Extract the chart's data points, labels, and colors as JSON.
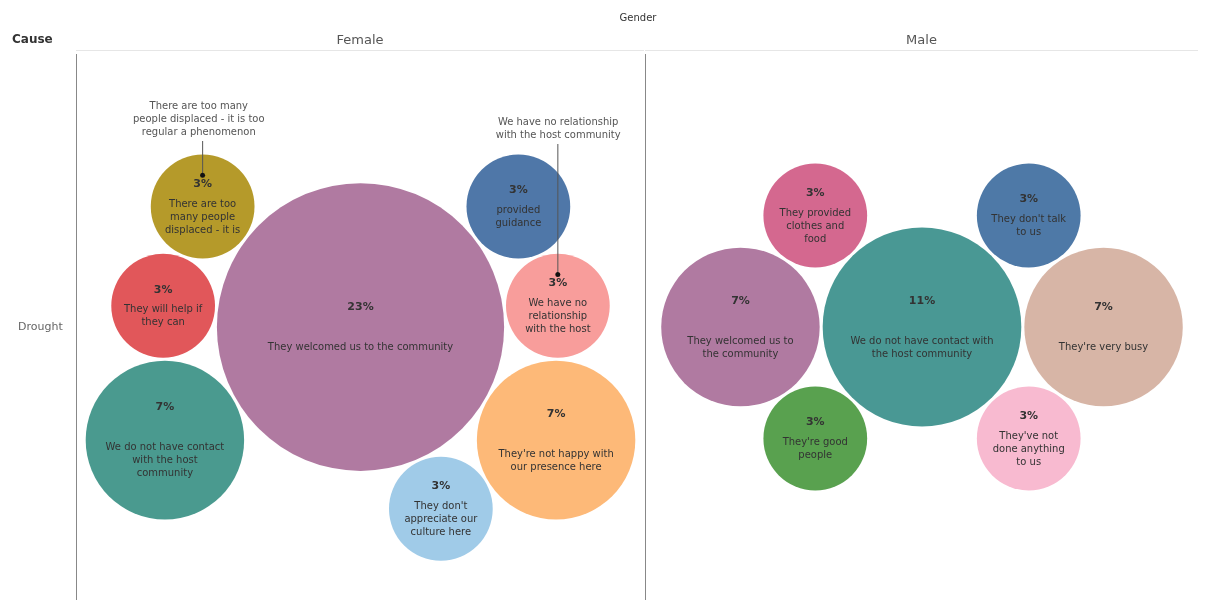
{
  "chart_data": [
    {
      "type": "other",
      "title": "Female",
      "categories": [
        "We have no relationship with the host",
        "They're not happy with our presence here",
        "They will help if they can",
        "We do not have contact with the host community",
        "provided guidance",
        "There are too many people displaced - it is",
        "They don't appreciate our culture here",
        "They welcomed us to the community"
      ],
      "values": [
        3,
        7,
        3,
        7,
        3,
        3,
        3,
        23
      ],
      "value_labels": [
        "3%",
        "7%",
        "3%",
        "7%",
        "3%",
        "3%",
        "3%",
        "23%"
      ],
      "colors": [
        "#f89d9b",
        "#fdb978",
        "#e1575a",
        "#4a9a8f",
        "#4f77a8",
        "#b59a2a",
        "#a0cbe8",
        "#b07aa1"
      ],
      "annotations": [
        "Cause",
        "Gender",
        "Drought",
        {
          "text": "We have no relationship with the host community",
          "x": "We have no relationship with the host"
        },
        {
          "text": "There are too many people displaced - it is too regular a phenomenon",
          "x": "There are too many people displaced - it is"
        }
      ]
    },
    {
      "type": "other",
      "title": "Male",
      "categories": [
        "They're very busy",
        "We do not have contact with the host community",
        "They've not done anything to us",
        "They don't talk to us",
        "They provided clothes and food",
        "They're good people",
        "They welcomed us to the community"
      ],
      "values": [
        7,
        11,
        3,
        3,
        3,
        3,
        7
      ],
      "value_labels": [
        "7%",
        "11%",
        "3%",
        "3%",
        "3%",
        "3%",
        "7%"
      ],
      "colors": [
        "#d7b5a6",
        "#499894",
        "#f8bad0",
        "#4e79a7",
        "#d4688f",
        "#59a14f",
        "#b07aa1"
      ]
    }
  ]
}
